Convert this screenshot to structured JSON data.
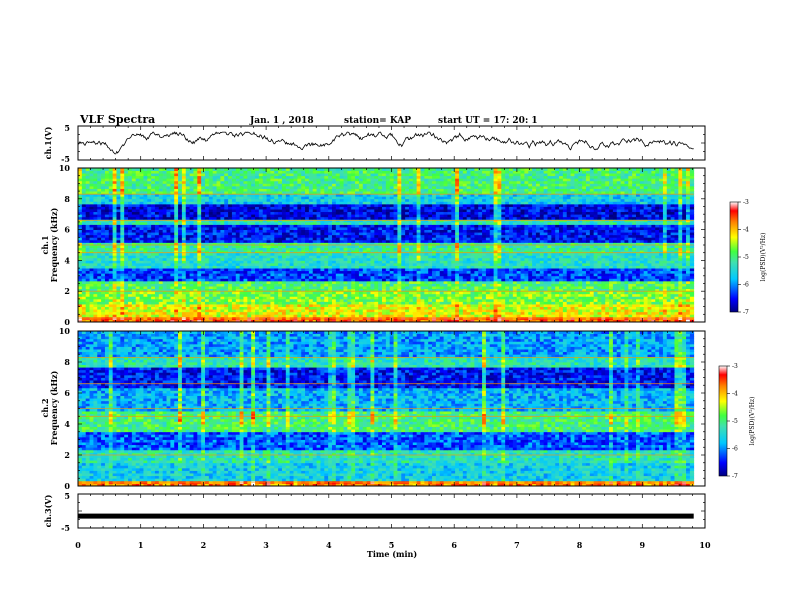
{
  "header": {
    "title": "VLF Spectra",
    "date": "Jan.  1  , 2018",
    "station": "station= KAP",
    "start": "start  UT  =    17: 20: 1"
  },
  "chart_data": [
    {
      "type": "line",
      "name": "ch1-voltage",
      "ylabel": "ch.1(V)",
      "yticks": [
        "5",
        "-5"
      ],
      "ylim": [
        -5,
        5
      ],
      "xlim": [
        0,
        10
      ],
      "x_extent_min": 9.82,
      "trace": "irregular noise between about -3 V and +3 V"
    },
    {
      "type": "heatmap",
      "name": "ch1-spectrogram",
      "ylabel": "ch.1\nFrequency (kHz)",
      "yticks": [
        "0",
        "2",
        "4",
        "6",
        "8",
        "10"
      ],
      "ylim": [
        0,
        10
      ],
      "xlim": [
        0,
        10
      ],
      "x_extent_min": 9.82,
      "colorbar": {
        "label": "log(PSD)(V²/Hz)",
        "ticks": [
          "-3",
          "-4",
          "-5",
          "-6",
          "-7"
        ],
        "range": [
          -7,
          -3
        ]
      },
      "bands": [
        {
          "from": 0.0,
          "to": 0.3,
          "level": -3.6
        },
        {
          "from": 0.3,
          "to": 1.2,
          "level": -4.3
        },
        {
          "from": 1.2,
          "to": 2.0,
          "level": -4.7
        },
        {
          "from": 2.0,
          "to": 2.6,
          "level": -4.9
        },
        {
          "from": 2.6,
          "to": 3.5,
          "level": -6.3
        },
        {
          "from": 3.5,
          "to": 4.5,
          "level": -5.4
        },
        {
          "from": 4.5,
          "to": 5.2,
          "level": -5.1
        },
        {
          "from": 5.2,
          "to": 6.3,
          "level": -6.5
        },
        {
          "from": 6.3,
          "to": 6.7,
          "level": -5.3
        },
        {
          "from": 6.7,
          "to": 7.7,
          "level": -6.6
        },
        {
          "from": 7.7,
          "to": 8.3,
          "level": -5.6
        },
        {
          "from": 8.3,
          "to": 10.0,
          "level": -5.0
        }
      ]
    },
    {
      "type": "heatmap",
      "name": "ch2-spectrogram",
      "ylabel": "ch.2\nFrequency (kHz)",
      "yticks": [
        "0",
        "2",
        "4",
        "6",
        "8",
        "10"
      ],
      "ylim": [
        0,
        10
      ],
      "xlim": [
        0,
        10
      ],
      "x_extent_min": 9.82,
      "colorbar": {
        "label": "log(PSD)(V²/Hz)",
        "ticks": [
          "-3",
          "-4",
          "-5",
          "-6",
          "-7"
        ],
        "range": [
          -7,
          -3
        ]
      },
      "bands": [
        {
          "from": 0.0,
          "to": 0.3,
          "level": -3.8
        },
        {
          "from": 0.3,
          "to": 1.5,
          "level": -5.6
        },
        {
          "from": 1.5,
          "to": 2.4,
          "level": -5.3
        },
        {
          "from": 2.4,
          "to": 3.5,
          "level": -6.2
        },
        {
          "from": 3.5,
          "to": 4.8,
          "level": -5.0
        },
        {
          "from": 4.8,
          "to": 6.3,
          "level": -5.8
        },
        {
          "from": 6.3,
          "to": 7.6,
          "level": -6.5
        },
        {
          "from": 7.6,
          "to": 8.3,
          "level": -5.3
        },
        {
          "from": 8.3,
          "to": 10.0,
          "level": -5.9
        }
      ]
    },
    {
      "type": "line",
      "name": "ch3-voltage",
      "ylabel": "ch.3(V)",
      "yticks": [
        "5",
        "-5"
      ],
      "ylim": [
        -5,
        5
      ],
      "xlim": [
        0,
        10
      ],
      "x_extent_min": 9.82,
      "constant_value": -1.5,
      "xlabel": "Time  (min)",
      "xticks": [
        "0",
        "1",
        "2",
        "3",
        "4",
        "5",
        "6",
        "7",
        "8",
        "9",
        "10"
      ]
    }
  ]
}
